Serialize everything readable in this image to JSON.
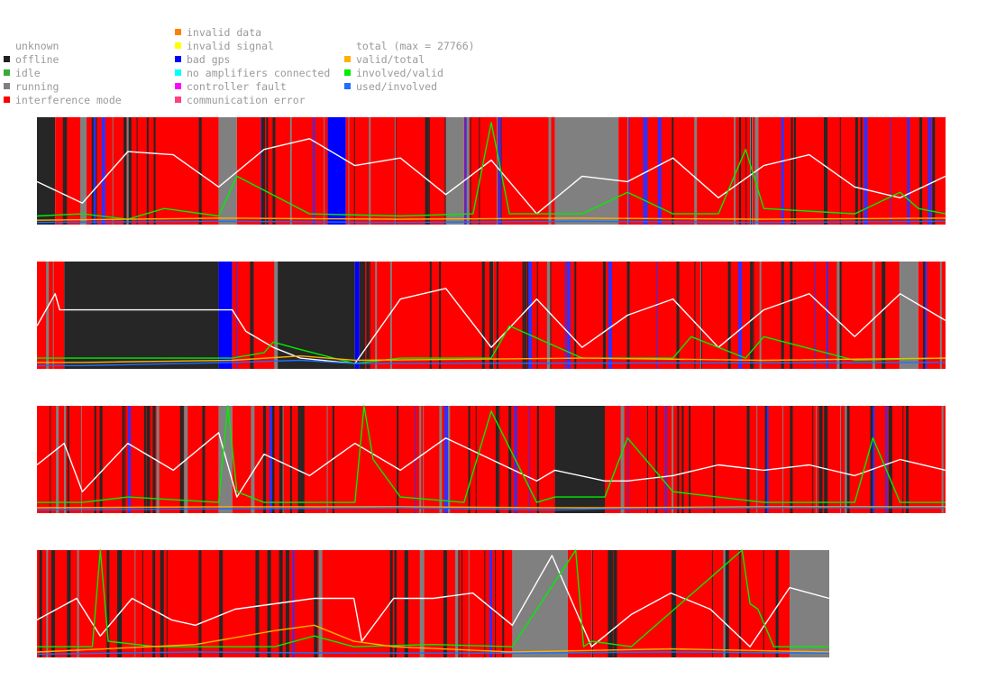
{
  "legend": {
    "col1": [
      {
        "label": "unknown",
        "color": ""
      },
      {
        "label": "offline",
        "color": "#202020"
      },
      {
        "label": "idle",
        "color": "#3aaa3a"
      },
      {
        "label": "running",
        "color": "#808080"
      },
      {
        "label": "interference mode",
        "color": "#ff0000"
      }
    ],
    "col2": [
      {
        "label": "invalid data",
        "color": "#ff7f00"
      },
      {
        "label": "invalid signal",
        "color": "#ffff00"
      },
      {
        "label": "bad gps",
        "color": "#0000ff"
      },
      {
        "label": "no amplifiers connected",
        "color": "#00ffff"
      },
      {
        "label": "controller fault",
        "color": "#ff00ff"
      },
      {
        "label": "communication error",
        "color": "#ff4080"
      }
    ],
    "col3": [
      {
        "label": "total (max = 27766)",
        "color": ""
      },
      {
        "label": "valid/total",
        "color": "#ffb000"
      },
      {
        "label": "involved/valid",
        "color": "#00ee00"
      },
      {
        "label": "used/involved",
        "color": "#1e6fff"
      }
    ]
  },
  "chart_data": {
    "type": "line",
    "title": "",
    "xlabel": "",
    "ylabel": "",
    "max_total": 27766,
    "ylim": [
      0,
      1
    ],
    "panels": [
      {
        "state_segments": [
          {
            "start": 0.0,
            "end": 0.02,
            "state": "offline"
          },
          {
            "start": 0.02,
            "end": 0.2,
            "state": "interference mode"
          },
          {
            "start": 0.2,
            "end": 0.22,
            "state": "running"
          },
          {
            "start": 0.22,
            "end": 0.32,
            "state": "interference mode"
          },
          {
            "start": 0.32,
            "end": 0.34,
            "state": "bad gps"
          },
          {
            "start": 0.34,
            "end": 0.45,
            "state": "interference mode"
          },
          {
            "start": 0.45,
            "end": 0.47,
            "state": "running"
          },
          {
            "start": 0.47,
            "end": 0.57,
            "state": "interference mode"
          },
          {
            "start": 0.57,
            "end": 0.64,
            "state": "running"
          },
          {
            "start": 0.64,
            "end": 1.0,
            "state": "interference mode"
          }
        ],
        "series": [
          {
            "name": "total",
            "color": "#ffffff",
            "x": [
              0,
              0.05,
              0.1,
              0.15,
              0.2,
              0.25,
              0.3,
              0.35,
              0.4,
              0.45,
              0.5,
              0.55,
              0.6,
              0.65,
              0.7,
              0.75,
              0.8,
              0.85,
              0.9,
              0.95,
              1.0
            ],
            "y": [
              0.4,
              0.2,
              0.68,
              0.65,
              0.35,
              0.7,
              0.8,
              0.55,
              0.62,
              0.28,
              0.6,
              0.1,
              0.45,
              0.4,
              0.62,
              0.25,
              0.55,
              0.65,
              0.35,
              0.25,
              0.45
            ]
          },
          {
            "name": "involved/valid",
            "color": "#00ee00",
            "x": [
              0,
              0.05,
              0.1,
              0.14,
              0.2,
              0.22,
              0.3,
              0.4,
              0.48,
              0.5,
              0.52,
              0.6,
              0.65,
              0.7,
              0.75,
              0.78,
              0.8,
              0.9,
              0.95,
              0.97,
              1.0
            ],
            "y": [
              0.08,
              0.1,
              0.05,
              0.15,
              0.08,
              0.45,
              0.1,
              0.08,
              0.1,
              0.95,
              0.1,
              0.1,
              0.3,
              0.1,
              0.1,
              0.7,
              0.15,
              0.1,
              0.3,
              0.15,
              0.1
            ]
          },
          {
            "name": "valid/total",
            "color": "#ffb000",
            "x": [
              0,
              0.2,
              0.4,
              0.6,
              0.8,
              1.0
            ],
            "y": [
              0.04,
              0.06,
              0.05,
              0.06,
              0.05,
              0.06
            ]
          },
          {
            "name": "used/involved",
            "color": "#1e6fff",
            "x": [
              0,
              0.2,
              0.4,
              0.6,
              0.8,
              1.0
            ],
            "y": [
              0.02,
              0.03,
              0.02,
              0.03,
              0.02,
              0.03
            ]
          }
        ]
      },
      {
        "state_segments": [
          {
            "start": 0.0,
            "end": 0.03,
            "state": "interference mode"
          },
          {
            "start": 0.03,
            "end": 0.2,
            "state": "offline"
          },
          {
            "start": 0.2,
            "end": 0.215,
            "state": "bad gps"
          },
          {
            "start": 0.215,
            "end": 0.265,
            "state": "interference mode"
          },
          {
            "start": 0.265,
            "end": 0.35,
            "state": "offline"
          },
          {
            "start": 0.35,
            "end": 0.355,
            "state": "bad gps"
          },
          {
            "start": 0.355,
            "end": 0.95,
            "state": "interference mode"
          },
          {
            "start": 0.95,
            "end": 0.97,
            "state": "running"
          },
          {
            "start": 0.97,
            "end": 1.0,
            "state": "interference mode"
          }
        ],
        "series": [
          {
            "name": "total",
            "color": "#ffffff",
            "x": [
              0,
              0.02,
              0.025,
              0.05,
              0.215,
              0.23,
              0.26,
              0.29,
              0.35,
              0.4,
              0.45,
              0.5,
              0.55,
              0.6,
              0.65,
              0.7,
              0.75,
              0.8,
              0.85,
              0.9,
              0.95,
              1.0
            ],
            "y": [
              0.4,
              0.7,
              0.55,
              0.55,
              0.55,
              0.35,
              0.2,
              0.1,
              0.05,
              0.65,
              0.75,
              0.2,
              0.65,
              0.2,
              0.5,
              0.65,
              0.2,
              0.55,
              0.7,
              0.3,
              0.7,
              0.45
            ]
          },
          {
            "name": "involved/valid",
            "color": "#00ee00",
            "x": [
              0,
              0.05,
              0.215,
              0.25,
              0.26,
              0.29,
              0.35,
              0.4,
              0.5,
              0.52,
              0.6,
              0.7,
              0.72,
              0.78,
              0.8,
              0.9,
              1.0
            ],
            "y": [
              0.1,
              0.1,
              0.1,
              0.15,
              0.25,
              0.18,
              0.05,
              0.1,
              0.1,
              0.4,
              0.1,
              0.1,
              0.3,
              0.1,
              0.3,
              0.08,
              0.1
            ]
          },
          {
            "name": "valid/total",
            "color": "#ffb000",
            "x": [
              0,
              0.05,
              0.215,
              0.29,
              0.35,
              0.6,
              0.8,
              1.0
            ],
            "y": [
              0.06,
              0.06,
              0.08,
              0.12,
              0.08,
              0.1,
              0.08,
              0.1
            ]
          },
          {
            "name": "used/involved",
            "color": "#1e6fff",
            "x": [
              0,
              0.05,
              0.215,
              0.29,
              0.35,
              1.0
            ],
            "y": [
              0.03,
              0.03,
              0.06,
              0.08,
              0.05,
              0.06
            ]
          }
        ]
      },
      {
        "state_segments": [
          {
            "start": 0.0,
            "end": 0.2,
            "state": "interference mode"
          },
          {
            "start": 0.2,
            "end": 0.215,
            "state": "running"
          },
          {
            "start": 0.215,
            "end": 0.57,
            "state": "interference mode"
          },
          {
            "start": 0.57,
            "end": 0.625,
            "state": "offline"
          },
          {
            "start": 0.625,
            "end": 1.0,
            "state": "interference mode"
          }
        ],
        "series": [
          {
            "name": "total",
            "color": "#ffffff",
            "x": [
              0,
              0.03,
              0.05,
              0.1,
              0.15,
              0.2,
              0.22,
              0.25,
              0.3,
              0.35,
              0.4,
              0.45,
              0.5,
              0.55,
              0.57,
              0.625,
              0.65,
              0.7,
              0.75,
              0.8,
              0.85,
              0.9,
              0.95,
              1.0
            ],
            "y": [
              0.45,
              0.65,
              0.2,
              0.65,
              0.4,
              0.75,
              0.15,
              0.55,
              0.35,
              0.65,
              0.4,
              0.7,
              0.5,
              0.3,
              0.4,
              0.3,
              0.3,
              0.35,
              0.45,
              0.4,
              0.45,
              0.35,
              0.5,
              0.4
            ]
          },
          {
            "name": "involved/valid",
            "color": "#00ee00",
            "x": [
              0,
              0.05,
              0.1,
              0.2,
              0.21,
              0.22,
              0.25,
              0.35,
              0.36,
              0.37,
              0.4,
              0.47,
              0.5,
              0.55,
              0.57,
              0.625,
              0.65,
              0.7,
              0.8,
              0.9,
              0.92,
              0.95,
              1.0
            ],
            "y": [
              0.1,
              0.1,
              0.15,
              0.1,
              1.0,
              0.2,
              0.1,
              0.1,
              1.0,
              0.5,
              0.15,
              0.1,
              0.95,
              0.1,
              0.15,
              0.15,
              0.7,
              0.2,
              0.1,
              0.1,
              0.7,
              0.1,
              0.1
            ]
          },
          {
            "name": "valid/total",
            "color": "#ffb000",
            "x": [
              0,
              0.2,
              0.4,
              0.57,
              0.625,
              0.8,
              1.0
            ],
            "y": [
              0.05,
              0.06,
              0.06,
              0.05,
              0.05,
              0.06,
              0.06
            ]
          },
          {
            "name": "used/involved",
            "color": "#1e6fff",
            "x": [
              0,
              0.2,
              0.4,
              0.57,
              0.625,
              0.8,
              1.0
            ],
            "y": [
              0.03,
              0.04,
              0.05,
              0.03,
              0.04,
              0.05,
              0.05
            ]
          }
        ]
      },
      {
        "state_segments": [
          {
            "start": 0.0,
            "end": 0.6,
            "state": "interference mode"
          },
          {
            "start": 0.6,
            "end": 0.67,
            "state": "running"
          },
          {
            "start": 0.67,
            "end": 0.95,
            "state": "interference mode"
          },
          {
            "start": 0.95,
            "end": 1.0,
            "state": "running"
          }
        ],
        "series": [
          {
            "name": "total",
            "color": "#ffffff",
            "x": [
              0,
              0.05,
              0.08,
              0.12,
              0.17,
              0.2,
              0.25,
              0.3,
              0.35,
              0.4,
              0.41,
              0.45,
              0.5,
              0.55,
              0.6,
              0.65,
              0.7,
              0.75,
              0.8,
              0.85,
              0.9,
              0.95,
              1.0
            ],
            "y": [
              0.35,
              0.55,
              0.2,
              0.55,
              0.35,
              0.3,
              0.45,
              0.5,
              0.55,
              0.55,
              0.15,
              0.55,
              0.55,
              0.6,
              0.3,
              0.95,
              0.1,
              0.4,
              0.6,
              0.45,
              0.1,
              0.65,
              0.55
            ]
          },
          {
            "name": "involved/valid",
            "color": "#00ee00",
            "x": [
              0,
              0.07,
              0.08,
              0.09,
              0.15,
              0.3,
              0.35,
              0.4,
              0.5,
              0.6,
              0.68,
              0.69,
              0.7,
              0.75,
              0.89,
              0.9,
              0.91,
              0.93,
              0.95,
              1.0
            ],
            "y": [
              0.1,
              0.1,
              1.0,
              0.15,
              0.1,
              0.1,
              0.2,
              0.1,
              0.12,
              0.1,
              1.0,
              0.1,
              0.15,
              0.1,
              1.0,
              0.5,
              0.45,
              0.1,
              0.1,
              0.1
            ]
          },
          {
            "name": "valid/total",
            "color": "#ffb000",
            "x": [
              0,
              0.2,
              0.3,
              0.35,
              0.4,
              0.45,
              0.6,
              0.8,
              1.0
            ],
            "y": [
              0.05,
              0.12,
              0.25,
              0.3,
              0.15,
              0.1,
              0.05,
              0.08,
              0.05
            ]
          },
          {
            "name": "used/involved",
            "color": "#1e6fff",
            "x": [
              0,
              0.2,
              0.4,
              0.6,
              0.8,
              1.0
            ],
            "y": [
              0.03,
              0.05,
              0.04,
              0.04,
              0.05,
              0.04
            ]
          }
        ]
      }
    ]
  }
}
